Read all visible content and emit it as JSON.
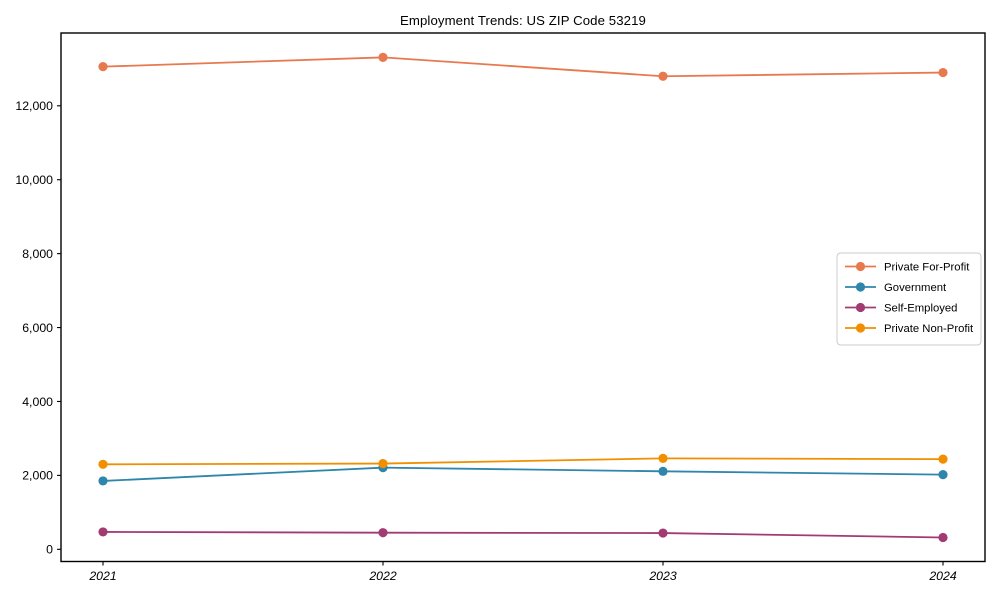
{
  "chart": {
    "title": "Employment Trends: US ZIP Code 53219"
  },
  "chart_data": {
    "type": "line",
    "title": "Employment Trends: US ZIP Code 53219",
    "xlabel": "",
    "ylabel": "",
    "categories": [
      "2021",
      "2022",
      "2023",
      "2024"
    ],
    "series": [
      {
        "name": "Private For-Profit",
        "color": "#e8794e",
        "values": [
          13060,
          13310,
          12800,
          12900
        ]
      },
      {
        "name": "Government",
        "color": "#2e86ab",
        "values": [
          1850,
          2210,
          2110,
          2020
        ]
      },
      {
        "name": "Self-Employed",
        "color": "#a23b72",
        "values": [
          470,
          450,
          440,
          320
        ]
      },
      {
        "name": "Private Non-Profit",
        "color": "#f18f01",
        "values": [
          2300,
          2320,
          2460,
          2440
        ]
      }
    ],
    "yticks": [
      0,
      2000,
      4000,
      6000,
      8000,
      10000,
      12000
    ],
    "ytick_labels": [
      "0",
      "2,000",
      "4,000",
      "6,000",
      "8,000",
      "10,000",
      "12,000"
    ],
    "ylim": [
      -330,
      13970
    ],
    "grid": false,
    "marker": "circle",
    "legend_position": "center-right",
    "legend_border_color": "#cccccc",
    "axis_color": "#000000",
    "background_color": "#ffffff"
  }
}
